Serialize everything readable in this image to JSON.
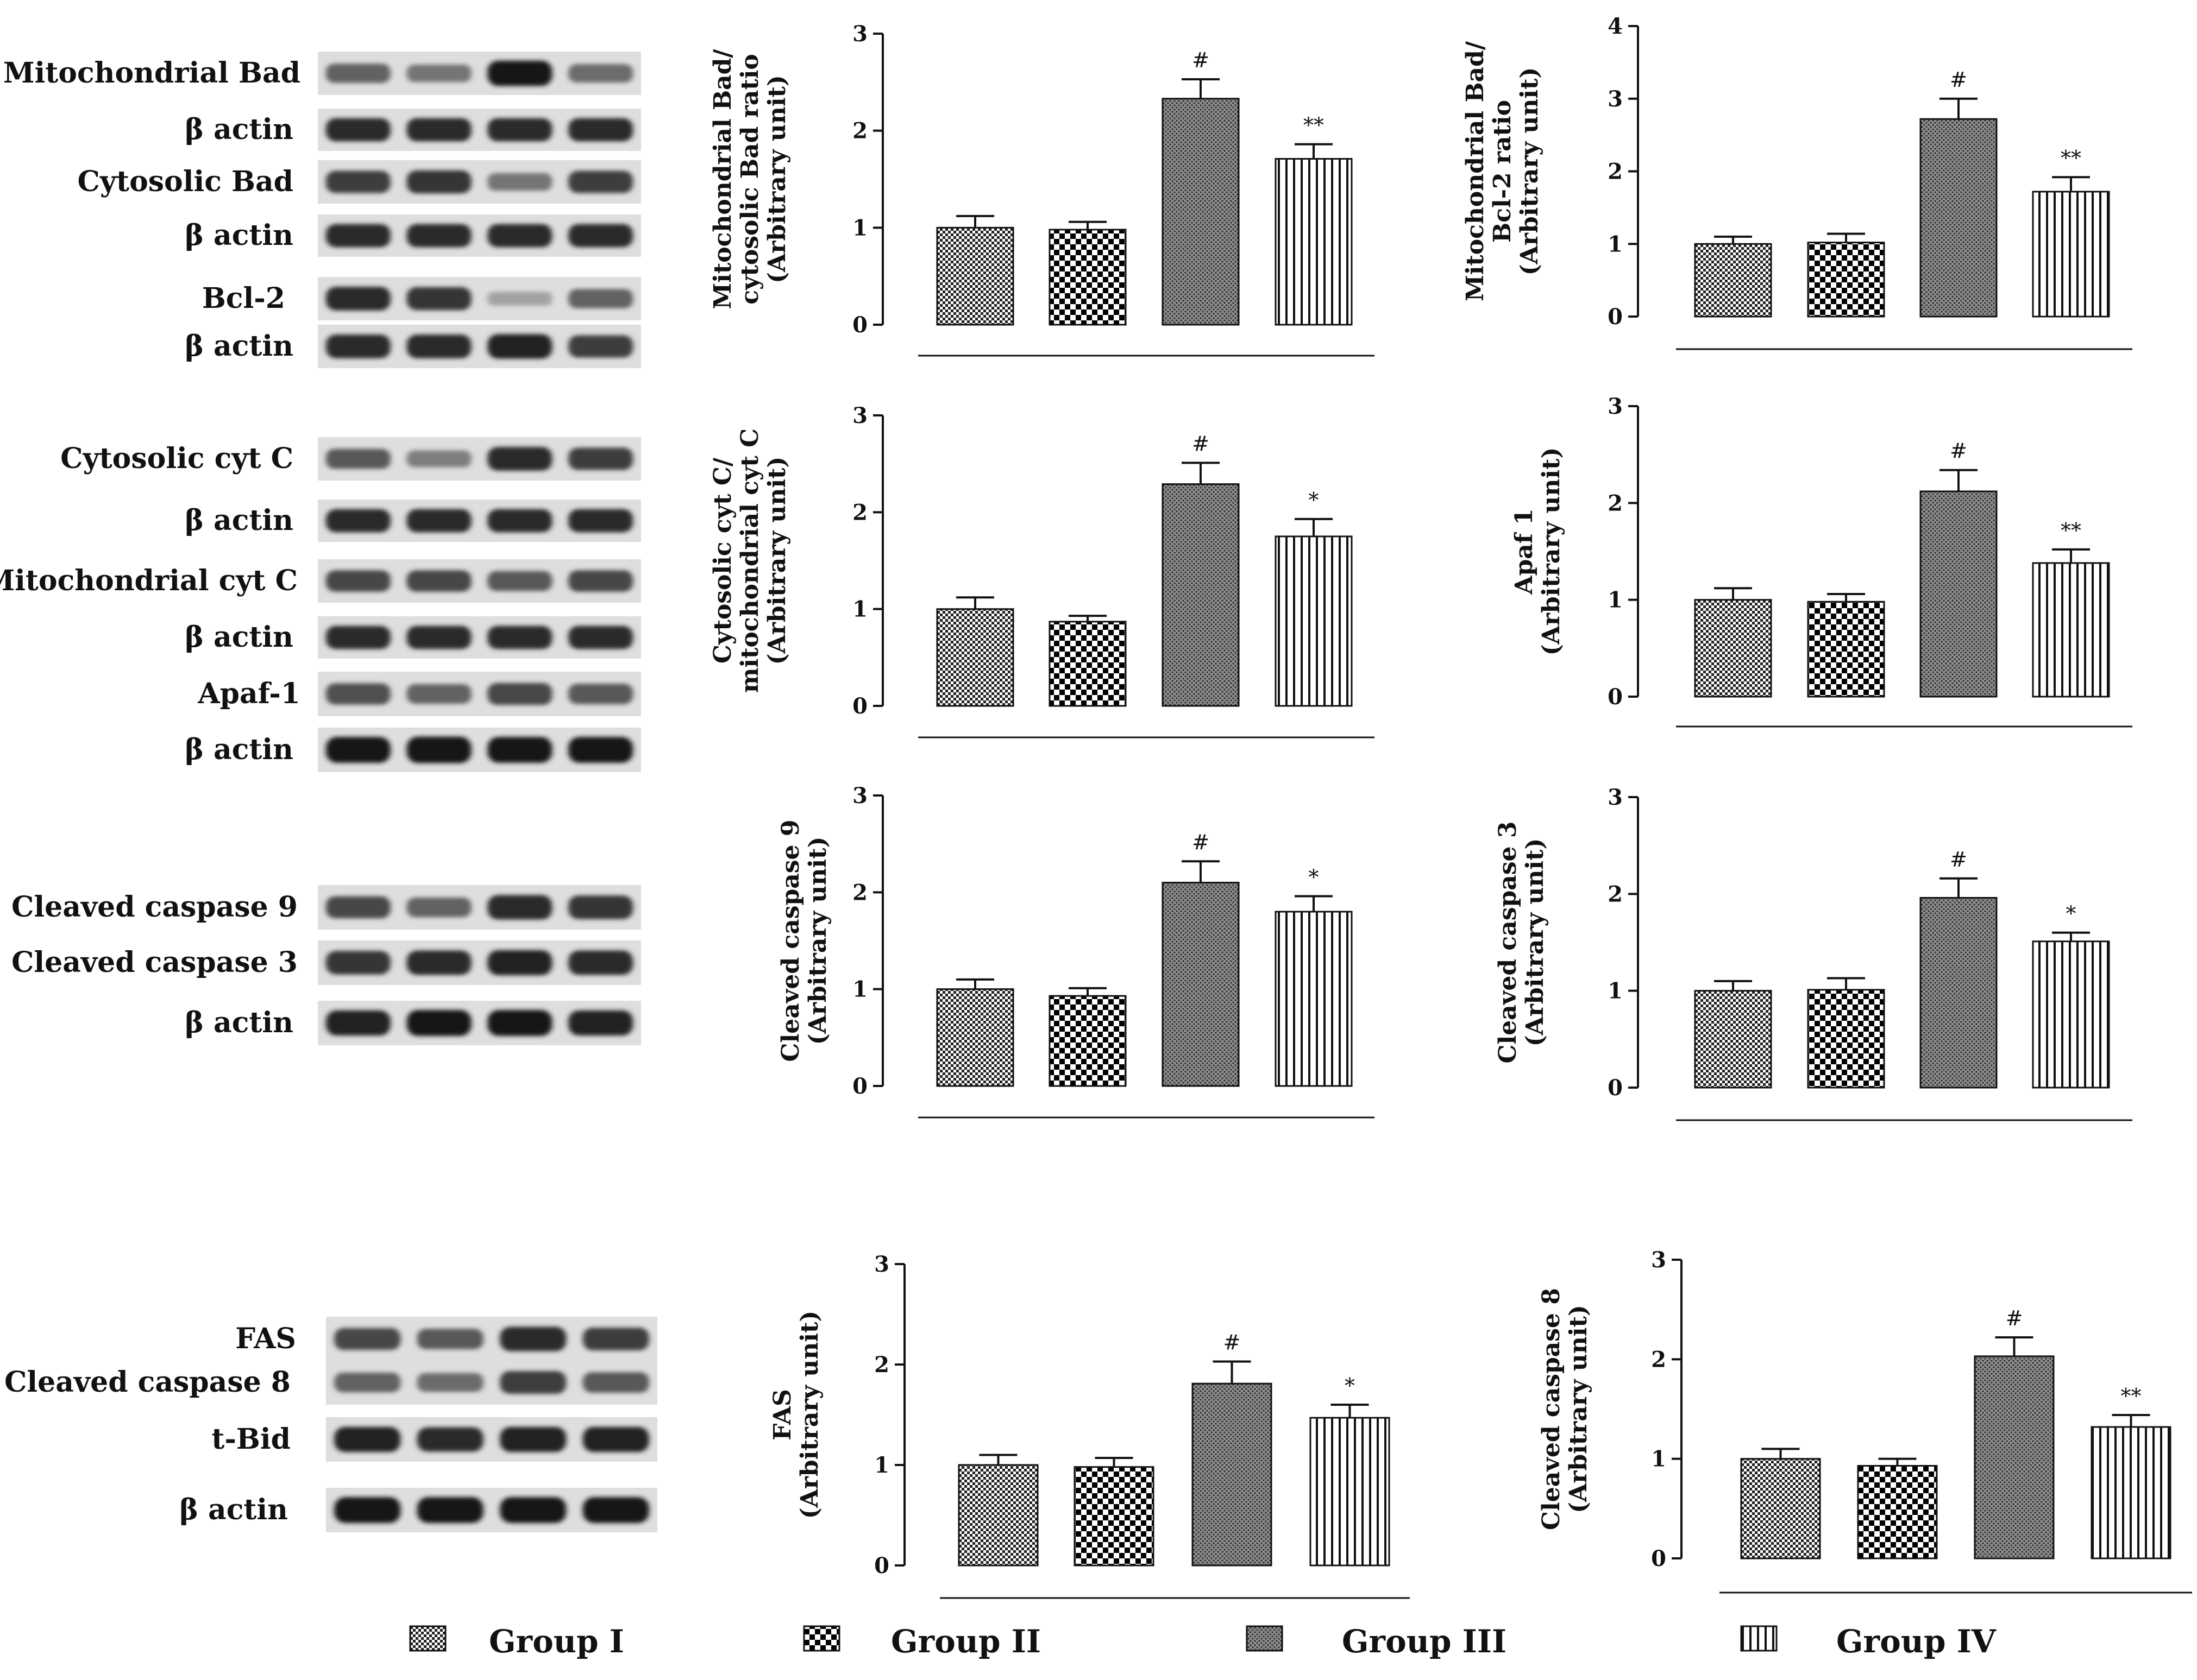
{
  "colors": {
    "ink": "#111111",
    "band": "#1a1a1a",
    "blot_bg": "#dedede"
  },
  "legend": [
    {
      "label": "Group I",
      "pattern": "fine-checker"
    },
    {
      "label": "Group II",
      "pattern": "checker"
    },
    {
      "label": "Group III",
      "pattern": "dots"
    },
    {
      "label": "Group IV",
      "pattern": "vlines"
    }
  ],
  "western_blots": [
    {
      "label": "Mitochondrial Bad",
      "intensity": [
        0.55,
        0.45,
        0.95,
        0.5
      ]
    },
    {
      "label": "β actin",
      "intensity": [
        0.85,
        0.85,
        0.85,
        0.85
      ]
    },
    {
      "label": "Cytosolic Bad",
      "intensity": [
        0.75,
        0.8,
        0.45,
        0.75
      ]
    },
    {
      "label": "β actin",
      "intensity": [
        0.85,
        0.85,
        0.85,
        0.85
      ]
    },
    {
      "label": "Bcl-2",
      "intensity": [
        0.85,
        0.8,
        0.2,
        0.55
      ]
    },
    {
      "label": "β actin",
      "intensity": [
        0.85,
        0.85,
        0.9,
        0.75
      ]
    },
    {
      "label": "Cytosolic cyt C",
      "intensity": [
        0.6,
        0.4,
        0.85,
        0.75
      ]
    },
    {
      "label": "β actin",
      "intensity": [
        0.85,
        0.85,
        0.85,
        0.85
      ]
    },
    {
      "label": "Mitochondrial cyt C",
      "intensity": [
        0.7,
        0.7,
        0.6,
        0.7
      ]
    },
    {
      "label": "β actin",
      "intensity": [
        0.85,
        0.85,
        0.85,
        0.85
      ]
    },
    {
      "label": "Apaf-1",
      "intensity": [
        0.65,
        0.55,
        0.7,
        0.6
      ]
    },
    {
      "label": "β actin",
      "intensity": [
        0.95,
        0.98,
        0.95,
        0.95
      ]
    },
    {
      "label": "Cleaved caspase 9",
      "intensity": [
        0.7,
        0.55,
        0.85,
        0.8
      ]
    },
    {
      "label": "Cleaved caspase 3",
      "intensity": [
        0.8,
        0.85,
        0.9,
        0.85
      ]
    },
    {
      "label": "β actin",
      "intensity": [
        0.9,
        0.95,
        0.95,
        0.9
      ]
    },
    {
      "label": "FAS",
      "intensity": [
        0.7,
        0.6,
        0.85,
        0.75
      ]
    },
    {
      "label": "Cleaved caspase 8",
      "intensity": [
        0.55,
        0.5,
        0.75,
        0.6
      ]
    },
    {
      "label": "t-Bid",
      "intensity": [
        0.9,
        0.85,
        0.9,
        0.9
      ]
    },
    {
      "label": "β actin",
      "intensity": [
        0.95,
        0.95,
        0.95,
        0.95
      ]
    }
  ],
  "chart_data": [
    {
      "type": "bar",
      "ylabel": [
        "Mitochondrial Bad/",
        "cytosolic Bad ratio",
        "(Arbitrary unit)"
      ],
      "categories": [
        "Group I",
        "Group II",
        "Group III",
        "Group IV"
      ],
      "values": [
        1.0,
        0.98,
        2.33,
        1.71
      ],
      "errors": [
        0.12,
        0.08,
        0.2,
        0.15
      ],
      "annotations": [
        "",
        "",
        "#",
        "**"
      ],
      "ylim": [
        0,
        3
      ],
      "yticks": [
        "0",
        "1",
        "2",
        "3"
      ]
    },
    {
      "type": "bar",
      "ylabel": [
        "Mitochondrial Bad/",
        "Bcl-2 ratio",
        "(Arbitrary unit)"
      ],
      "categories": [
        "Group I",
        "Group II",
        "Group III",
        "Group IV"
      ],
      "values": [
        1.0,
        1.02,
        2.72,
        1.72
      ],
      "errors": [
        0.1,
        0.12,
        0.28,
        0.2
      ],
      "annotations": [
        "",
        "",
        "#",
        "**"
      ],
      "ylim": [
        0,
        4
      ],
      "yticks": [
        "0",
        "1",
        "2",
        "3",
        "4"
      ]
    },
    {
      "type": "bar",
      "ylabel": [
        "Cytosolic cyt C/",
        "mitochondrial cyt C",
        "(Arbitrary unit)"
      ],
      "categories": [
        "Group I",
        "Group II",
        "Group III",
        "Group IV"
      ],
      "values": [
        1.0,
        0.87,
        2.29,
        1.75
      ],
      "errors": [
        0.12,
        0.06,
        0.22,
        0.18
      ],
      "annotations": [
        "",
        "",
        "#",
        "*"
      ],
      "ylim": [
        0,
        3
      ],
      "yticks": [
        "0",
        "1",
        "2",
        "3"
      ]
    },
    {
      "type": "bar",
      "ylabel": [
        "Apaf 1",
        "(Arbitrary unit)"
      ],
      "categories": [
        "Group I",
        "Group II",
        "Group III",
        "Group IV"
      ],
      "values": [
        1.0,
        0.98,
        2.12,
        1.38
      ],
      "errors": [
        0.12,
        0.08,
        0.22,
        0.14
      ],
      "annotations": [
        "",
        "",
        "#",
        "**"
      ],
      "ylim": [
        0,
        3
      ],
      "yticks": [
        "0",
        "1",
        "2",
        "3"
      ]
    },
    {
      "type": "bar",
      "ylabel": [
        "Cleaved caspase 9",
        "(Arbitrary unit)"
      ],
      "categories": [
        "Group I",
        "Group II",
        "Group III",
        "Group IV"
      ],
      "values": [
        1.0,
        0.93,
        2.1,
        1.8
      ],
      "errors": [
        0.1,
        0.08,
        0.22,
        0.16
      ],
      "annotations": [
        "",
        "",
        "#",
        "*"
      ],
      "ylim": [
        0,
        3
      ],
      "yticks": [
        "0",
        "1",
        "2",
        "3"
      ]
    },
    {
      "type": "bar",
      "ylabel": [
        "Cleaved caspase 3",
        "(Arbitrary unit)"
      ],
      "categories": [
        "Group I",
        "Group II",
        "Group III",
        "Group IV"
      ],
      "values": [
        1.0,
        1.01,
        1.96,
        1.51
      ],
      "errors": [
        0.1,
        0.12,
        0.2,
        0.09
      ],
      "annotations": [
        "",
        "",
        "#",
        "*"
      ],
      "ylim": [
        0,
        3
      ],
      "yticks": [
        "0",
        "1",
        "2",
        "3"
      ]
    },
    {
      "type": "bar",
      "ylabel": [
        "FAS",
        "(Arbitrary unit)"
      ],
      "categories": [
        "Group I",
        "Group II",
        "Group III",
        "Group IV"
      ],
      "values": [
        1.0,
        0.98,
        1.81,
        1.47
      ],
      "errors": [
        0.1,
        0.09,
        0.22,
        0.13
      ],
      "annotations": [
        "",
        "",
        "#",
        "*"
      ],
      "ylim": [
        0,
        3
      ],
      "yticks": [
        "0",
        "1",
        "2",
        "3"
      ]
    },
    {
      "type": "bar",
      "ylabel": [
        "Cleaved caspase 8",
        "(Arbitrary unit)"
      ],
      "categories": [
        "Group I",
        "Group II",
        "Group III",
        "Group IV"
      ],
      "values": [
        1.0,
        0.93,
        2.03,
        1.32
      ],
      "errors": [
        0.1,
        0.07,
        0.19,
        0.12
      ],
      "annotations": [
        "",
        "",
        "#",
        "**"
      ],
      "ylim": [
        0,
        3
      ],
      "yticks": [
        "0",
        "1",
        "2",
        "3"
      ]
    }
  ]
}
